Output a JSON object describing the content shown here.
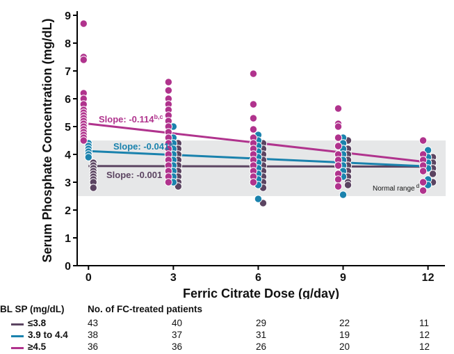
{
  "chart_data": {
    "type": "scatter",
    "xlabel": "Ferric Citrate Dose (g/day)",
    "ylabel": "Serum Phosphate Concentration (mg/dL)",
    "x_ticks": [
      0,
      3,
      6,
      9,
      12
    ],
    "y_ticks": [
      0,
      1,
      2,
      3,
      4,
      5,
      6,
      7,
      8,
      9
    ],
    "xlim": [
      -0.4,
      12.6
    ],
    "ylim": [
      0,
      9
    ],
    "normal_range": {
      "low": 2.5,
      "high": 4.5,
      "label": "Normal range",
      "footnote": "d"
    },
    "colors": {
      "low": "#5b4461",
      "mid": "#1a82ad",
      "high": "#b0338d",
      "band": "#e6e7e8"
    },
    "series": [
      {
        "group": "low",
        "color": "#5b4461",
        "trend": {
          "y0": 3.58,
          "y12": 3.56
        },
        "slope_label": "Slope: -0.001",
        "slope_sup": "",
        "points": [
          [
            0,
            [
              3.7,
              3.6,
              3.5,
              3.4,
              3.3,
              3.2,
              3.1,
              3.0,
              2.8
            ]
          ],
          [
            3,
            [
              4.4,
              4.2,
              4.0,
              3.8,
              3.6,
              3.4,
              3.2,
              3.0,
              2.85
            ]
          ],
          [
            6,
            [
              4.4,
              4.2,
              4.0,
              3.8,
              3.6,
              3.4,
              3.2,
              3.0,
              2.8,
              2.25
            ]
          ],
          [
            9,
            [
              4.5,
              4.2,
              4.0,
              3.8,
              3.6,
              3.4,
              3.2,
              3.0,
              2.9
            ]
          ],
          [
            12,
            [
              3.9,
              3.7,
              3.5,
              3.3,
              3.0
            ]
          ]
        ]
      },
      {
        "group": "mid",
        "color": "#1a82ad",
        "trend": {
          "y0": 4.12,
          "y12": 3.57
        },
        "slope_label": "Slope: -0.041",
        "slope_sup": "a",
        "points": [
          [
            0,
            [
              4.4,
              4.3,
              4.2,
              4.1,
              4.0,
              3.9
            ]
          ],
          [
            3,
            [
              5.0,
              4.6,
              4.4,
              4.2,
              4.0,
              3.8,
              3.6,
              3.4,
              3.2,
              3.0
            ]
          ],
          [
            6,
            [
              4.7,
              4.5,
              4.3,
              4.1,
              3.9,
              3.7,
              3.5,
              3.3,
              3.1,
              2.9,
              2.4
            ]
          ],
          [
            9,
            [
              4.6,
              4.4,
              4.2,
              4.0,
              3.8,
              3.6,
              3.4,
              3.2,
              2.55
            ]
          ],
          [
            12,
            [
              4.15,
              3.9,
              3.7,
              3.5,
              3.1,
              2.9
            ]
          ]
        ]
      },
      {
        "group": "high",
        "color": "#b0338d",
        "trend": {
          "y0": 5.1,
          "y12": 3.72
        },
        "slope_label": "Slope: -0.114",
        "slope_sup": "b,c",
        "points": [
          [
            0,
            [
              8.7,
              7.5,
              7.4,
              6.2,
              6.0,
              5.8,
              5.6,
              5.5,
              5.4,
              5.3,
              5.2,
              5.1,
              5.0,
              4.9,
              4.8,
              4.7,
              4.6,
              4.5
            ]
          ],
          [
            3,
            [
              6.6,
              6.3,
              6.0,
              5.8,
              5.6,
              5.4,
              5.2,
              5.0,
              4.8,
              4.6,
              4.4,
              4.2,
              4.0,
              3.8,
              3.6,
              3.4,
              3.2,
              3.0
            ]
          ],
          [
            6,
            [
              6.9,
              5.8,
              5.3,
              4.9,
              4.6,
              4.4,
              4.2,
              4.0,
              3.8,
              3.6,
              3.4,
              3.2,
              3.0
            ]
          ],
          [
            9,
            [
              5.65,
              5.1,
              5.0,
              4.6,
              4.3,
              4.0,
              3.8,
              3.6,
              3.3,
              3.1,
              2.85
            ]
          ],
          [
            12,
            [
              4.5,
              4.0,
              3.8,
              3.6,
              3.4,
              3.0,
              2.7
            ]
          ]
        ]
      }
    ]
  },
  "patients_table": {
    "header_group": "BL SP (mg/dL)",
    "header_count": "No. of FC-treated patients",
    "rows": [
      {
        "label": "≤3.8",
        "color": "#5b4461",
        "counts": [
          "43",
          "40",
          "29",
          "22",
          "11"
        ]
      },
      {
        "label": "3.9 to 4.4",
        "color": "#1a82ad",
        "counts": [
          "38",
          "37",
          "31",
          "19",
          "12"
        ]
      },
      {
        "label": "≥4.5",
        "color": "#b0338d",
        "counts": [
          "36",
          "36",
          "26",
          "20",
          "12"
        ]
      }
    ]
  }
}
